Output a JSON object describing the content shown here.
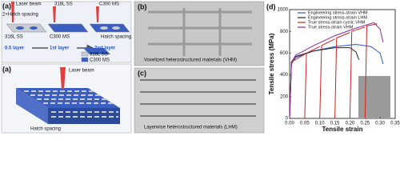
{
  "panel_a": {
    "label": "(a)",
    "laser_top": "Laser beam",
    "spacing2": "2×Hatch spacing",
    "ss": "316L SS",
    "ms": "C300 MS",
    "ms2": "C300 MS",
    "ss2": "316L SS",
    "layer05": "0.5 layer",
    "layer1": "1st layer",
    "layer2": "2nd layer",
    "hatch_top": "Hatch spacing",
    "legend_ss": "316L SS",
    "legend_ms": "C300 MS",
    "laser_bottom": "Laser beam",
    "hatch_bottom": "Hatch spacing"
  },
  "panel_b": {
    "label": "(b)",
    "caption": "Voxelized heterostructured materials (VHM)"
  },
  "panel_c": {
    "label": "(c)",
    "caption": "Layerwise heterostructured materials (LHM)"
  },
  "chart_data": {
    "type": "line",
    "label": "(d)",
    "x_label": "Tensile strain",
    "y_label": "Tensile stress (MPa)",
    "xlim": [
      0,
      0.35
    ],
    "ylim": [
      0,
      1000
    ],
    "xticks": [
      {
        "value": 0,
        "label": "0.00"
      },
      {
        "value": 0.05,
        "label": "0.05"
      },
      {
        "value": 0.1,
        "label": "0.10"
      },
      {
        "value": 0.15,
        "label": "0.15"
      },
      {
        "value": 0.2,
        "label": "0.20"
      },
      {
        "value": 0.25,
        "label": "0.25"
      },
      {
        "value": 0.3,
        "label": "0.30"
      },
      {
        "value": 0.35,
        "label": "0.35"
      }
    ],
    "yticks": [
      0,
      200,
      400,
      600,
      800,
      1000
    ],
    "series": [
      {
        "name": "Engineering stress-strain VHM",
        "color": "#2a54c8",
        "x": [
          0,
          0.006,
          0.02,
          0.08,
          0.15,
          0.22,
          0.27,
          0.3,
          0.31
        ],
        "values": [
          0,
          500,
          560,
          620,
          660,
          680,
          660,
          600,
          500
        ]
      },
      {
        "name": "Engineering stress-strain LHM",
        "color": "#222222",
        "x": [
          0,
          0.006,
          0.02,
          0.08,
          0.15,
          0.2,
          0.22,
          0.23
        ],
        "values": [
          0,
          520,
          570,
          620,
          650,
          650,
          610,
          540
        ]
      },
      {
        "name": "True stress-strain cyclic VHM",
        "color": "#d02020",
        "x": [
          0,
          0.006,
          0.05,
          null,
          0.05,
          0.056,
          0.1,
          null,
          0.1,
          0.106,
          0.15,
          null,
          0.15,
          0.156,
          0.2,
          null,
          0.2,
          0.206,
          0.25,
          null,
          0.25,
          0.256,
          0.29
        ],
        "values": [
          0,
          520,
          590,
          null,
          0,
          600,
          660,
          null,
          0,
          670,
          730,
          null,
          0,
          740,
          790,
          null,
          0,
          800,
          840,
          null,
          0,
          850,
          870
        ]
      },
      {
        "name": "True stress-strain VHM",
        "color": "#8a2a9a",
        "x": [
          0,
          0.006,
          0.02,
          0.08,
          0.15,
          0.22,
          0.28,
          0.3,
          0.31
        ],
        "values": [
          0,
          510,
          580,
          670,
          760,
          830,
          880,
          820,
          700
        ]
      }
    ]
  }
}
